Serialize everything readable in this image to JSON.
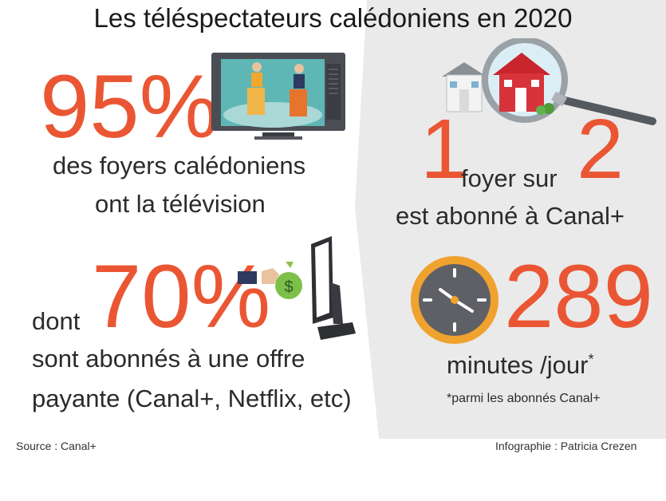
{
  "title": "Les téléspectateurs calédoniens en 2020",
  "stat_tv": {
    "value": "95%",
    "line1": "des foyers calédoniens",
    "line2": "ont la télévision"
  },
  "stat_paid": {
    "prefix": "dont",
    "value": "70%",
    "line1": "sont abonnés à une offre",
    "line2": "payante (Canal+, Netflix, etc)"
  },
  "stat_canal": {
    "num1": "1",
    "middle": "foyer sur",
    "num2": "2",
    "line": "est abonné à Canal+"
  },
  "stat_minutes": {
    "value": "289",
    "unit": "minutes /jour",
    "footnote_mark": "*",
    "footnote": "*parmi les abonnés Canal+"
  },
  "source": "Source : Canal+",
  "credit": "Infographie : Patricia Crezen",
  "icons": [
    "tv-debate-icon",
    "money-hand-icon",
    "computer-monitor-icon",
    "houses-magnifier-icon",
    "clock-icon"
  ],
  "colors": {
    "accent": "#ea5633",
    "panel": "#eaeaea",
    "text": "#2b2b2b"
  }
}
